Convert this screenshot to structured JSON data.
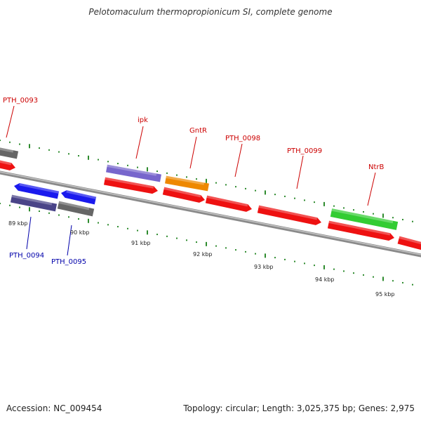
{
  "title": "Pelotomaculum thermopropionicum SI, complete genome",
  "footer": {
    "accession": "Accession: NC_009454",
    "summary": "Topology: circular; Length: 3,025,375 bp; Genes: 2,975"
  },
  "colors": {
    "backbone": "#7a7a7a",
    "tick": "#2e8b2e",
    "label_top": "#cc0000",
    "label_bottom": "#0000aa",
    "gene_red": "#ee1111",
    "gene_blue": "#1a1aee",
    "gene_slate": "#4a4488",
    "gene_lavender": "#7766cc",
    "gene_orange": "#ee8800",
    "gene_green": "#33cc33",
    "gene_gray": "#666666"
  },
  "scale": {
    "ticks": [
      {
        "label": "89 kbp"
      },
      {
        "label": "90 kbp"
      },
      {
        "label": "91 kbp"
      },
      {
        "label": "92 kbp"
      },
      {
        "label": "93 kbp"
      },
      {
        "label": "94 kbp"
      },
      {
        "label": "95 kbp"
      }
    ]
  },
  "gene_labels": [
    {
      "text": "PTH_0093",
      "side": "top"
    },
    {
      "text": "ipk",
      "side": "top"
    },
    {
      "text": "GntR",
      "side": "top"
    },
    {
      "text": "PTH_0098",
      "side": "top"
    },
    {
      "text": "PTH_0099",
      "side": "top"
    },
    {
      "text": "NtrB",
      "side": "top"
    },
    {
      "text": "PTH_0094",
      "side": "bottom"
    },
    {
      "text": "PTH_0095",
      "side": "bottom"
    }
  ]
}
